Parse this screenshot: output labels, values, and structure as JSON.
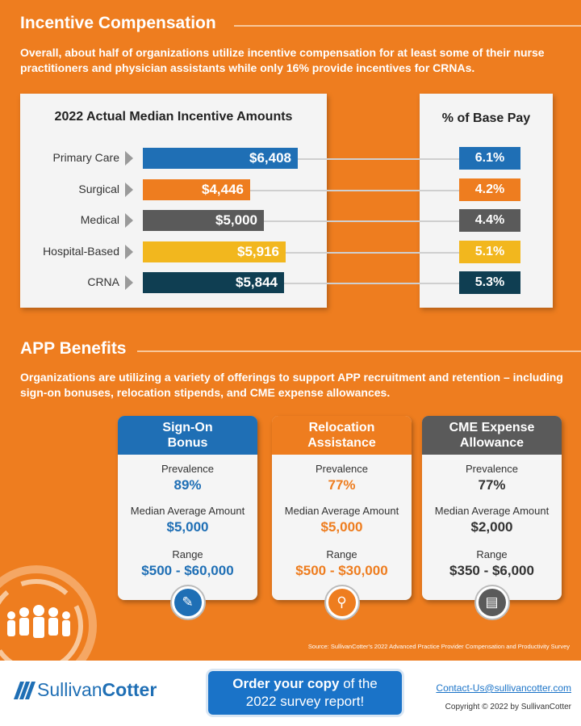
{
  "incentive": {
    "title": "Incentive Compensation",
    "description": "Overall, about half of organizations utilize incentive compensation for at least some of their nurse practitioners and physician assistants while only 16% provide incentives for CRNAs.",
    "chart_title": "2022 Actual Median Incentive Amounts",
    "pct_title": "% of Base Pay"
  },
  "chart_data": {
    "type": "bar",
    "title": "2022 Actual Median Incentive Amounts",
    "categories": [
      "Primary Care",
      "Surgical",
      "Medical",
      "Hospital-Based",
      "CRNA"
    ],
    "values": [
      6408,
      4446,
      5000,
      5916,
      5844
    ],
    "value_labels": [
      "$6,408",
      "$4,446",
      "$5,000",
      "$5,916",
      "$5,844"
    ],
    "percent_of_base_pay": [
      6.1,
      4.2,
      4.4,
      5.1,
      5.3
    ],
    "percent_labels": [
      "6.1%",
      "4.2%",
      "4.4%",
      "5.1%",
      "5.3%"
    ],
    "colors": [
      "#1f6fb5",
      "#ee7d1f",
      "#5a5a5a",
      "#f2b71e",
      "#0f3e52"
    ]
  },
  "benefits": {
    "title": "APP Benefits",
    "description": "Organizations are utilizing a variety of offerings to support APP recruitment and retention – including sign-on bonuses, relocation stipends, and CME expense allowances.",
    "prevalence_label": "Prevalence",
    "median_label": "Median Average Amount",
    "range_label": "Range",
    "cards": [
      {
        "title": "Sign-On\nBonus",
        "prevalence": "89%",
        "median": "$5,000",
        "range": "$500 - $60,000",
        "color": "#1f6fb5",
        "icon": "contract-icon"
      },
      {
        "title": "Relocation\nAssistance",
        "prevalence": "77%",
        "median": "$5,000",
        "range": "$500 - $30,000",
        "color": "#ee7d1f",
        "icon": "relocation-icon"
      },
      {
        "title": "CME Expense\nAllowance",
        "prevalence": "77%",
        "median": "$2,000",
        "range": "$350 - $6,000",
        "color": "#5a5a5a",
        "icon": "computer-icon"
      }
    ]
  },
  "source": "Source: SullivanCotter's 2022 Advanced Practice Provider Compensation and Productivity Survey",
  "footer": {
    "logo_part1": "Sullivan",
    "logo_part2": "Cotter",
    "order_bold": "Order your copy",
    "order_rest": " of the",
    "order_line2": "2022 survey report!",
    "contact": "Contact-Us@sullivancotter.com",
    "copyright": "Copyright © 2022 by SullivanCotter"
  }
}
